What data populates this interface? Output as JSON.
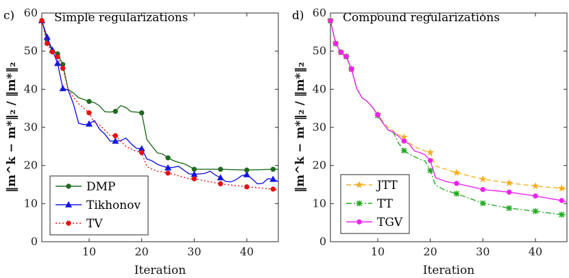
{
  "chart_data": [
    {
      "type": "line",
      "panel": "c)",
      "title": "Simple regularizations",
      "xlabel": "Iteration",
      "ylabel": "‖m^k − m*‖₂ / ‖m*‖₂",
      "xlim": [
        1,
        46
      ],
      "ylim": [
        0,
        60
      ],
      "xticks": [
        10,
        20,
        30,
        40
      ],
      "yticks": [
        0,
        10,
        20,
        30,
        40,
        50,
        60
      ],
      "legend_position": "bottom-left",
      "series": [
        {
          "name": "DMP",
          "color": "#1f6b1f",
          "dash": "solid",
          "marker": "circle",
          "x": [
            1,
            2,
            3,
            4,
            5,
            6,
            7,
            8,
            9,
            10,
            11,
            12,
            13,
            14,
            15,
            16,
            17,
            18,
            19,
            20,
            21,
            22,
            23,
            24,
            25,
            26,
            27,
            28,
            29,
            30,
            35,
            40,
            45,
            46
          ],
          "y": [
            58,
            53,
            50,
            49.3,
            46.5,
            40,
            39,
            37.8,
            37.3,
            36.8,
            36.5,
            35.6,
            34.1,
            34,
            34.2,
            35.7,
            35.2,
            34.1,
            34,
            33.8,
            26.8,
            25,
            23.3,
            23,
            22,
            21.3,
            20.8,
            20.5,
            19.8,
            19,
            19,
            18.8,
            19,
            19
          ],
          "marker_x": [
            1,
            2,
            3,
            4,
            5,
            10,
            15,
            20,
            25,
            30,
            35,
            40,
            45
          ]
        },
        {
          "name": "Tikhonov",
          "color": "#1515e6",
          "dash": "solid",
          "marker": "triangle",
          "x": [
            1,
            2,
            3,
            4,
            5,
            6,
            7,
            8,
            9,
            10,
            11,
            12,
            13,
            14,
            15,
            16,
            17,
            18,
            19,
            20,
            21,
            22,
            23,
            24,
            25,
            26,
            27,
            28,
            29,
            30,
            31,
            32,
            33,
            34,
            35,
            36,
            37,
            38,
            39,
            40,
            41,
            42,
            43,
            44,
            45,
            46
          ],
          "y": [
            58,
            53.7,
            50.3,
            46.8,
            40.2,
            39.8,
            36.2,
            31.1,
            30.7,
            30.9,
            31.8,
            29.5,
            28.2,
            26.4,
            26.4,
            26.5,
            27.2,
            25.7,
            24.5,
            24.4,
            21.7,
            21.2,
            20.3,
            19.8,
            19.4,
            19.5,
            19.8,
            18.8,
            17.8,
            17.7,
            17.8,
            17.9,
            18.5,
            17.5,
            16.8,
            15.8,
            15.7,
            16.3,
            17.3,
            17.6,
            16.5,
            15.2,
            15.3,
            16.5,
            16.4,
            15.8
          ],
          "marker_x": [
            1,
            2,
            3,
            4,
            5,
            10,
            15,
            20,
            25,
            30,
            35,
            40,
            45
          ]
        },
        {
          "name": "TV",
          "color": "#e61010",
          "dash": "dotted",
          "marker": "circle",
          "x": [
            1,
            2,
            3,
            4,
            5,
            6,
            7,
            8,
            9,
            10,
            11,
            12,
            13,
            14,
            15,
            16,
            17,
            18,
            19,
            20,
            21,
            22,
            23,
            24,
            25,
            26,
            27,
            28,
            29,
            30,
            35,
            40,
            45,
            46
          ],
          "y": [
            58,
            52,
            49.8,
            48.5,
            45.5,
            40,
            38,
            36.2,
            35,
            33.8,
            31.2,
            30.6,
            29.3,
            27.8,
            27.8,
            26.4,
            25,
            24.3,
            23.7,
            23.4,
            19.7,
            19,
            18.5,
            18.3,
            18,
            17.7,
            17.3,
            16.9,
            16.5,
            16.5,
            15.2,
            14.4,
            13.8,
            13.5
          ],
          "marker_x": [
            1,
            2,
            3,
            4,
            5,
            10,
            15,
            20,
            25,
            30,
            35,
            40,
            45
          ]
        }
      ]
    },
    {
      "type": "line",
      "panel": "d)",
      "title": "Compound regularizations",
      "xlabel": "Iteration",
      "ylabel": "‖m^k − m*‖₂ / ‖m*‖₂",
      "xlim": [
        1,
        46
      ],
      "ylim": [
        0,
        60
      ],
      "xticks": [
        10,
        20,
        30,
        40
      ],
      "yticks": [
        0,
        10,
        20,
        30,
        40,
        50,
        60
      ],
      "legend_position": "bottom-left",
      "series": [
        {
          "name": "JTT",
          "color": "#f5b020",
          "dash": "dashed",
          "marker": "star",
          "x": [
            1,
            2,
            3,
            4,
            5,
            6,
            7,
            8,
            9,
            10,
            11,
            12,
            13,
            14,
            15,
            16,
            17,
            18,
            19,
            20,
            21,
            22,
            23,
            24,
            25,
            30,
            35,
            40,
            45,
            46
          ],
          "y": [
            58,
            52,
            49.7,
            48.6,
            45.3,
            40.2,
            37.8,
            36.8,
            35.3,
            33.4,
            31.5,
            30,
            29,
            28,
            27.4,
            25.9,
            25,
            24.3,
            23.8,
            23.4,
            19.9,
            19.4,
            19,
            18.5,
            18.1,
            16.4,
            15.4,
            14.6,
            14,
            13.8
          ],
          "marker_x": [
            1,
            2,
            3,
            4,
            5,
            10,
            15,
            20,
            25,
            30,
            35,
            40,
            45
          ]
        },
        {
          "name": "TT",
          "color": "#22aa22",
          "dash": "dashdot",
          "marker": "cross",
          "x": [
            1,
            2,
            3,
            4,
            5,
            6,
            7,
            8,
            9,
            10,
            11,
            12,
            13,
            14,
            15,
            16,
            17,
            18,
            19,
            20,
            21,
            22,
            23,
            24,
            25,
            30,
            35,
            40,
            45,
            46
          ],
          "y": [
            58,
            52,
            49.7,
            48.6,
            45.3,
            40.2,
            37.8,
            36.8,
            35.3,
            33.1,
            31,
            29.4,
            28.6,
            25.8,
            23.9,
            23,
            22.3,
            21.6,
            21.2,
            18.7,
            14.8,
            14.1,
            13.4,
            13,
            12.6,
            10.1,
            8.8,
            8,
            7.1,
            7
          ],
          "marker_x": [
            1,
            2,
            3,
            4,
            5,
            10,
            15,
            20,
            25,
            30,
            35,
            40,
            45
          ]
        },
        {
          "name": "TGV",
          "color": "#ee22ee",
          "dash": "solid",
          "marker": "circle",
          "x": [
            1,
            2,
            3,
            4,
            5,
            6,
            7,
            8,
            9,
            10,
            11,
            12,
            13,
            14,
            15,
            16,
            17,
            18,
            19,
            20,
            21,
            22,
            23,
            24,
            25,
            30,
            35,
            40,
            45,
            46
          ],
          "y": [
            58,
            52,
            49.7,
            48.6,
            45.3,
            40.2,
            37.8,
            36.8,
            35.3,
            33.3,
            31.1,
            29.3,
            28.7,
            27.6,
            26.4,
            25.6,
            23.8,
            23.4,
            22.8,
            21.3,
            16.8,
            16.3,
            15.8,
            15.5,
            15.3,
            13.7,
            13,
            12,
            10.8,
            10.4
          ],
          "marker_x": [
            1,
            2,
            3,
            4,
            5,
            10,
            15,
            20,
            25,
            30,
            35,
            40,
            45
          ]
        }
      ]
    }
  ]
}
